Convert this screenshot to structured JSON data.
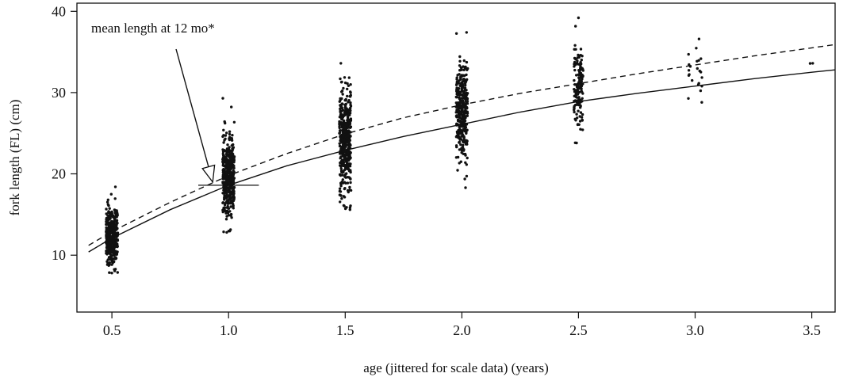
{
  "chart_data": {
    "type": "scatter",
    "title": "",
    "xlabel": "age (jittered for scale data) (years)",
    "ylabel": "fork length (FL) (cm)",
    "xlim": [
      0.35,
      3.6
    ],
    "ylim": [
      3,
      41
    ],
    "xticks": [
      "0.5",
      "1.0",
      "1.5",
      "2.0",
      "2.5",
      "3.0",
      "3.5"
    ],
    "yticks": [
      "10",
      "20",
      "30",
      "40"
    ],
    "grid": false,
    "legend": "none",
    "annotation": {
      "text": "mean length at 12 mo*",
      "x": 1.0,
      "y": 18.6,
      "bar_halfwidth_years": 0.13
    },
    "age_groups": [
      {
        "age": 0.5,
        "n": 430,
        "mean": 12.5,
        "sd": 1.8,
        "min": 7.8,
        "max": 18.4,
        "jitter": 0.025
      },
      {
        "age": 1.0,
        "n": 430,
        "mean": 19.5,
        "sd": 2.5,
        "min": 12.8,
        "max": 29.3,
        "jitter": 0.025
      },
      {
        "age": 1.5,
        "n": 430,
        "mean": 24.0,
        "sd": 3.2,
        "min": 15.6,
        "max": 33.6,
        "jitter": 0.025
      },
      {
        "age": 2.0,
        "n": 330,
        "mean": 28.0,
        "sd": 3.1,
        "min": 18.3,
        "max": 37.4,
        "jitter": 0.025
      },
      {
        "age": 2.5,
        "n": 150,
        "mean": 30.8,
        "sd": 2.3,
        "min": 23.8,
        "max": 39.2,
        "jitter": 0.02
      },
      {
        "age": 3.0,
        "n": 22,
        "mean": 32.2,
        "sd": 1.8,
        "min": 28.8,
        "max": 36.6,
        "jitter": 0.03
      },
      {
        "age": 3.5,
        "n": 2,
        "mean": 33.6,
        "sd": 0.3,
        "min": 33.4,
        "max": 33.9,
        "jitter": 0.01
      }
    ],
    "series": [
      {
        "style": "solid",
        "x": [
          0.4,
          0.5,
          0.75,
          1.0,
          1.25,
          1.5,
          1.75,
          2.0,
          2.25,
          2.5,
          2.75,
          3.0,
          3.25,
          3.5,
          3.6
        ],
        "y": [
          10.4,
          12.1,
          15.6,
          18.6,
          21.0,
          22.9,
          24.6,
          26.1,
          27.6,
          28.9,
          29.9,
          30.8,
          31.7,
          32.5,
          32.8
        ]
      },
      {
        "style": "dashed",
        "x": [
          0.4,
          0.5,
          0.75,
          1.0,
          1.25,
          1.5,
          1.75,
          2.0,
          2.25,
          2.5,
          2.75,
          3.0,
          3.25,
          3.5,
          3.6
        ],
        "y": [
          11.2,
          12.9,
          16.5,
          19.8,
          22.5,
          24.9,
          26.9,
          28.5,
          29.9,
          31.1,
          32.3,
          33.4,
          34.5,
          35.5,
          35.9
        ]
      }
    ]
  }
}
